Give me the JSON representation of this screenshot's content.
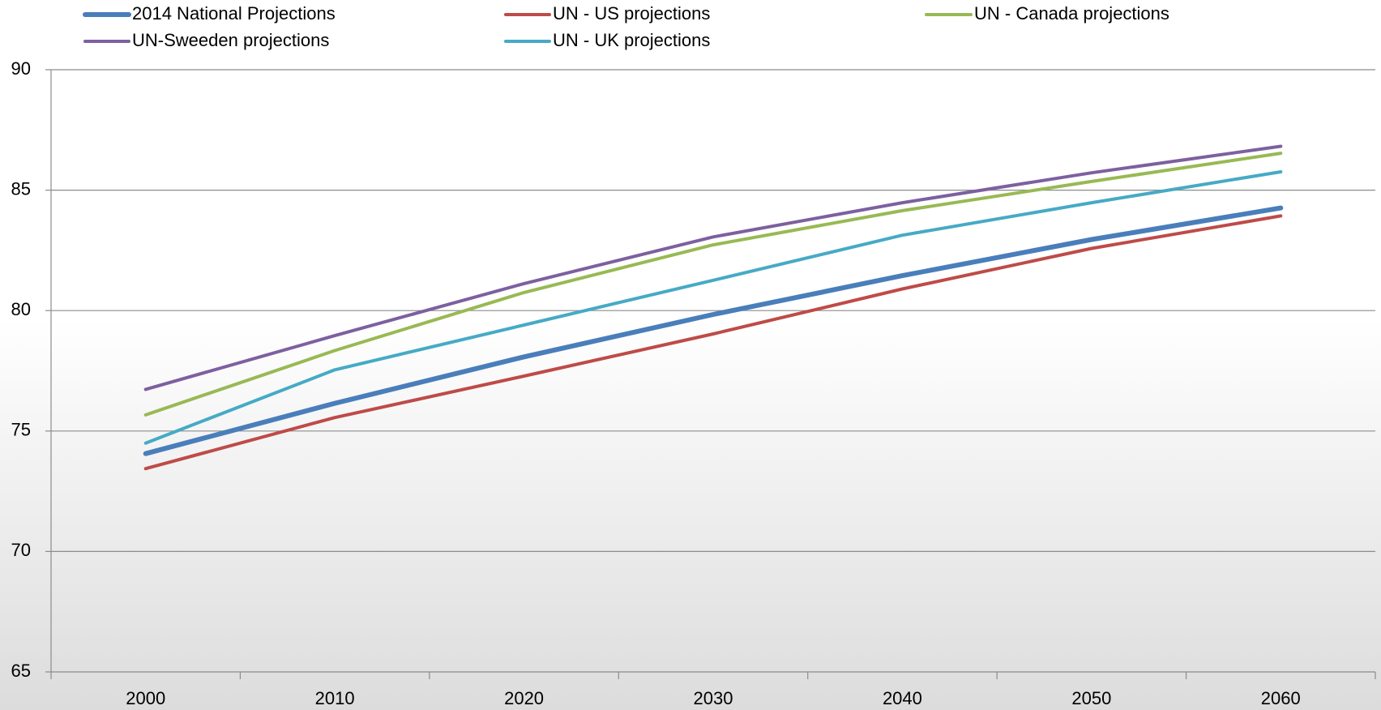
{
  "chart_data": {
    "type": "line",
    "categories": [
      "2000",
      "2010",
      "2020",
      "2030",
      "2040",
      "2050",
      "2060"
    ],
    "series": [
      {
        "name": "2014 National Projections",
        "color": "#4a7ebb",
        "line_width": 6,
        "values": [
          74.06,
          76.15,
          78.08,
          79.84,
          81.45,
          82.95,
          84.26
        ]
      },
      {
        "name": "UN - US projections",
        "color": "#be4b48",
        "line_width": 4,
        "values": [
          73.44,
          75.56,
          77.28,
          79.03,
          80.9,
          82.58,
          83.93
        ]
      },
      {
        "name": "UN - Canada projections",
        "color": "#98b954",
        "line_width": 4,
        "values": [
          75.67,
          78.34,
          80.75,
          82.73,
          84.15,
          85.36,
          86.53
        ]
      },
      {
        "name": "UN-Sweeden projections",
        "color": "#7d60a0",
        "line_width": 4,
        "values": [
          76.73,
          78.96,
          81.12,
          83.06,
          84.48,
          85.72,
          86.82
        ]
      },
      {
        "name": "UN - UK projections",
        "color": "#46aac5",
        "line_width": 4,
        "values": [
          74.5,
          77.54,
          79.4,
          81.26,
          83.13,
          84.48,
          85.76
        ]
      }
    ],
    "ylim": [
      65,
      90
    ],
    "yticks": [
      65,
      70,
      75,
      80,
      85,
      90
    ],
    "grid": true,
    "legend": "top"
  }
}
